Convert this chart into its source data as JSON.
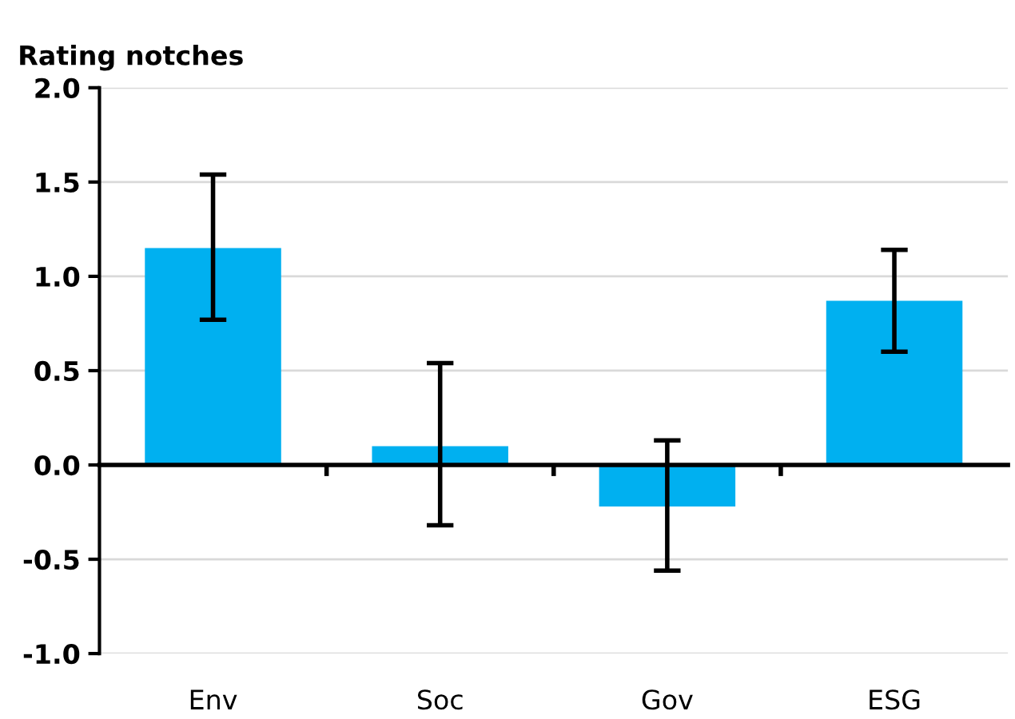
{
  "chart_data": {
    "type": "bar",
    "ylabel": "Rating notches",
    "categories": [
      "Env",
      "Soc",
      "Gov",
      "ESG"
    ],
    "values": [
      1.15,
      0.1,
      -0.22,
      0.87
    ],
    "errors": [
      [
        0.77,
        1.54
      ],
      [
        -0.32,
        0.54
      ],
      [
        -0.56,
        0.13
      ],
      [
        0.6,
        1.14
      ]
    ],
    "color": "#00b0f0",
    "ylim": [
      -1.0,
      2.0
    ],
    "yticks": [
      {
        "value": -1.0,
        "label": "-1.0"
      },
      {
        "value": -0.5,
        "label": "-0.5"
      },
      {
        "value": 0.0,
        "label": "0.0"
      },
      {
        "value": 0.5,
        "label": "0.5"
      },
      {
        "value": 1.0,
        "label": "1.0"
      },
      {
        "value": 1.5,
        "label": "1.5"
      },
      {
        "value": 2.0,
        "label": "2.0"
      }
    ],
    "grid": "y"
  }
}
